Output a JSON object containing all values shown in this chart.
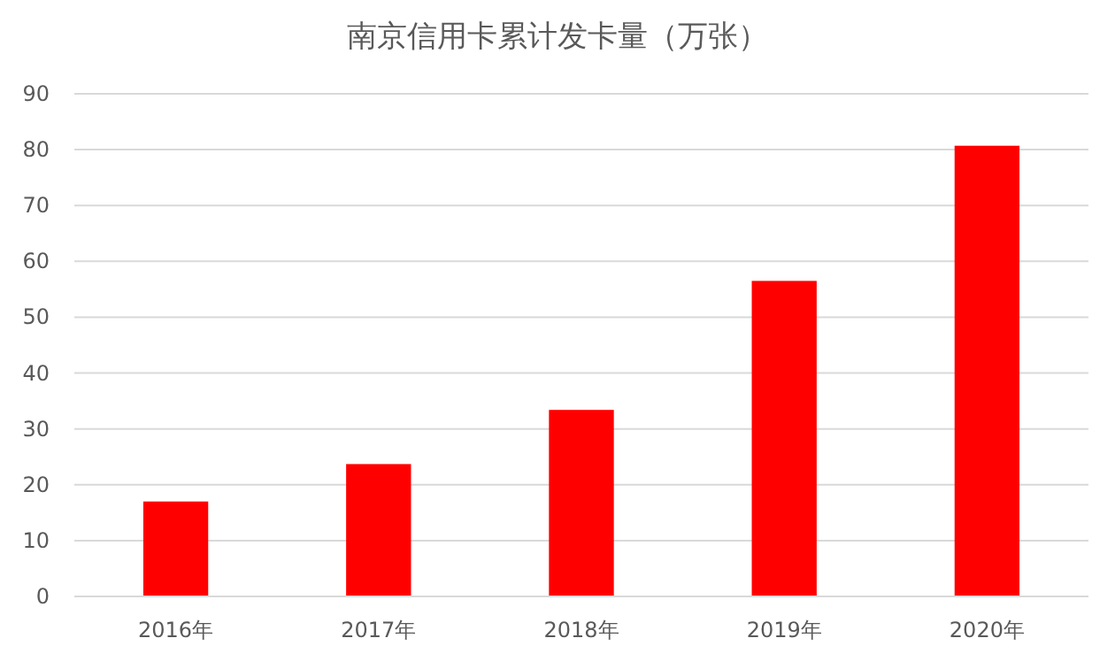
{
  "chart_data": {
    "type": "bar",
    "title": "南京信用卡累计发卡量（万张）",
    "categories": [
      "2016年",
      "2017年",
      "2018年",
      "2019年",
      "2020年"
    ],
    "values": [
      17.0,
      23.7,
      33.4,
      56.5,
      80.7
    ],
    "color": "#ff0000",
    "ylim": [
      0,
      90
    ],
    "yticks": [
      0,
      10,
      20,
      30,
      40,
      50,
      60,
      70,
      80,
      90
    ],
    "grid": "y"
  }
}
